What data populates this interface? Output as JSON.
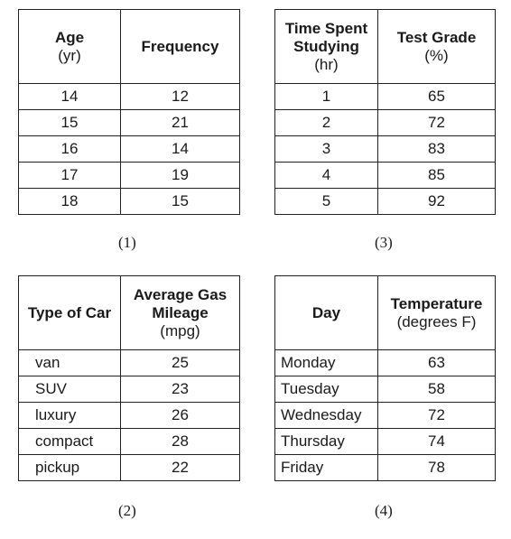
{
  "tables": [
    {
      "caption": "(1)",
      "headers": [
        {
          "title": "Age",
          "unit": "(yr)"
        },
        {
          "title": "Frequency",
          "unit": ""
        }
      ],
      "rows": [
        [
          "14",
          "12"
        ],
        [
          "15",
          "21"
        ],
        [
          "16",
          "14"
        ],
        [
          "17",
          "19"
        ],
        [
          "18",
          "15"
        ]
      ]
    },
    {
      "caption": "(2)",
      "headers": [
        {
          "title": "Type of Car",
          "unit": ""
        },
        {
          "title": "Average Gas Mileage",
          "unit": "(mpg)"
        }
      ],
      "rows": [
        [
          "van",
          "25"
        ],
        [
          "SUV",
          "23"
        ],
        [
          "luxury",
          "26"
        ],
        [
          "compact",
          "28"
        ],
        [
          "pickup",
          "22"
        ]
      ]
    },
    {
      "caption": "(3)",
      "headers": [
        {
          "title": "Time Spent Studying",
          "unit": "(hr)"
        },
        {
          "title": "Test Grade",
          "unit": "(%)"
        }
      ],
      "rows": [
        [
          "1",
          "65"
        ],
        [
          "2",
          "72"
        ],
        [
          "3",
          "83"
        ],
        [
          "4",
          "85"
        ],
        [
          "5",
          "92"
        ]
      ]
    },
    {
      "caption": "(4)",
      "headers": [
        {
          "title": "Day",
          "unit": ""
        },
        {
          "title": "Temperature",
          "unit": "(degrees F)"
        }
      ],
      "rows": [
        [
          "Monday",
          "63"
        ],
        [
          "Tuesday",
          "58"
        ],
        [
          "Wednesday",
          "72"
        ],
        [
          "Thursday",
          "74"
        ],
        [
          "Friday",
          "78"
        ]
      ]
    }
  ]
}
